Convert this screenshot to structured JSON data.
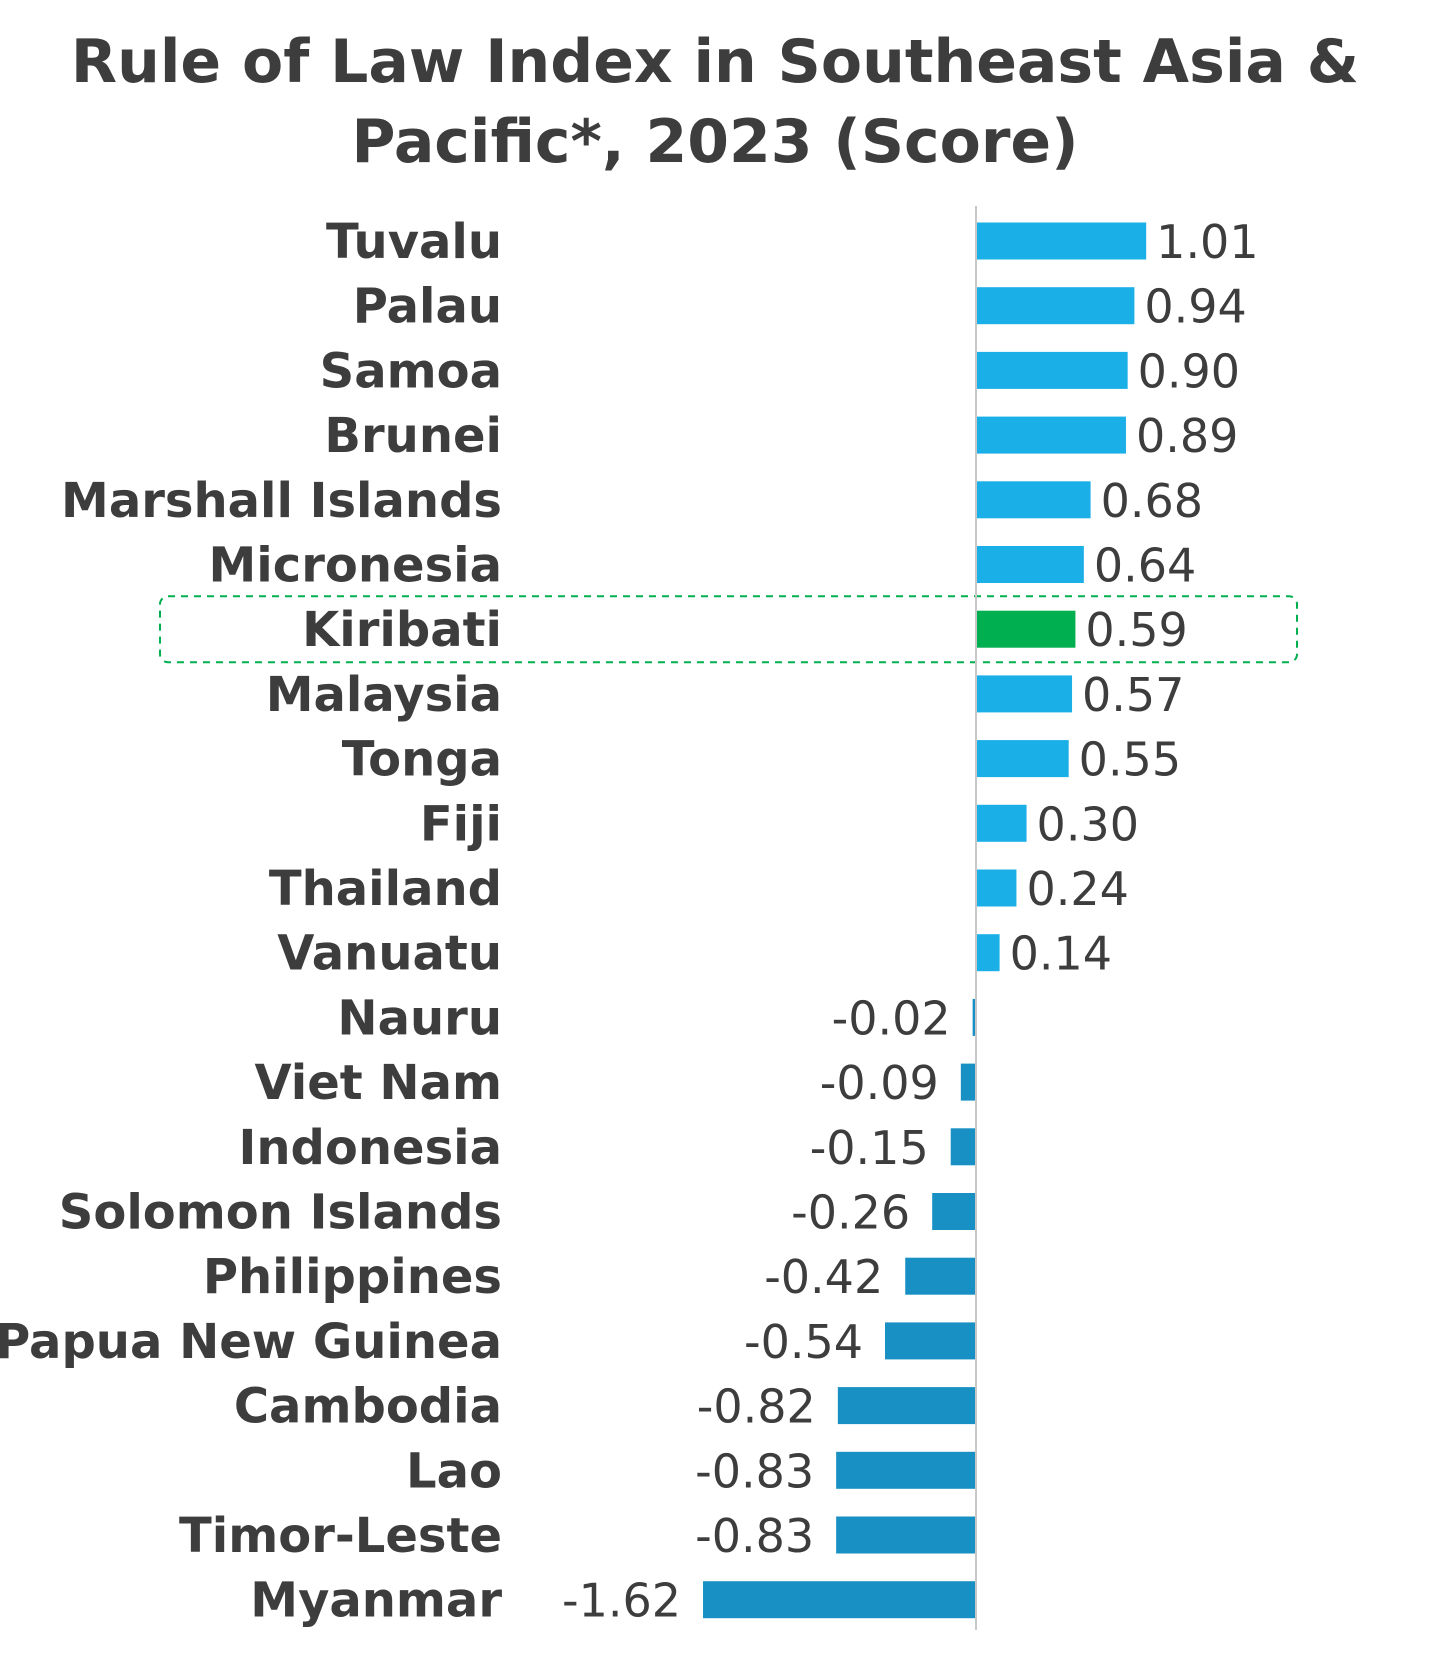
{
  "chart_data": {
    "type": "bar",
    "orientation": "horizontal",
    "title_lines": [
      "Rule of Law Index in Southeast Asia &",
      "Pacific*, 2023 (Score)"
    ],
    "xlabel": "",
    "ylabel": "",
    "xlim": [
      -1.7,
      1.35
    ],
    "grid": false,
    "legend": "none",
    "categories": [
      "Tuvalu",
      "Palau",
      "Samoa",
      "Brunei",
      "Marshall Islands",
      "Micronesia",
      "Kiribati",
      "Malaysia",
      "Tonga",
      "Fiji",
      "Thailand",
      "Vanuatu",
      "Nauru",
      "Viet Nam",
      "Indonesia",
      "Solomon Islands",
      "Philippines",
      "Papua New Guinea",
      "Cambodia",
      "Lao",
      "Timor-Leste",
      "Myanmar"
    ],
    "values": [
      1.01,
      0.94,
      0.9,
      0.89,
      0.68,
      0.64,
      0.59,
      0.57,
      0.55,
      0.3,
      0.24,
      0.14,
      -0.02,
      -0.09,
      -0.15,
      -0.26,
      -0.42,
      -0.54,
      -0.82,
      -0.83,
      -0.83,
      -1.62
    ],
    "value_labels": [
      "1.01",
      "0.94",
      "0.90",
      "0.89",
      "0.68",
      "0.64",
      "0.59",
      "0.57",
      "0.55",
      "0.30",
      "0.24",
      "0.14",
      "-0.02",
      "-0.09",
      "-0.15",
      "-0.26",
      "-0.42",
      "-0.54",
      "-0.82",
      "-0.83",
      "-0.83",
      "-1.62"
    ],
    "highlight_category": "Kiribati",
    "colors": {
      "positive": "#1aafe6",
      "negative": "#1890c4",
      "highlight": "#00b050",
      "highlight_border": "#00b050",
      "axis": "#c8c8c8",
      "text": "#3d3d3d"
    }
  }
}
